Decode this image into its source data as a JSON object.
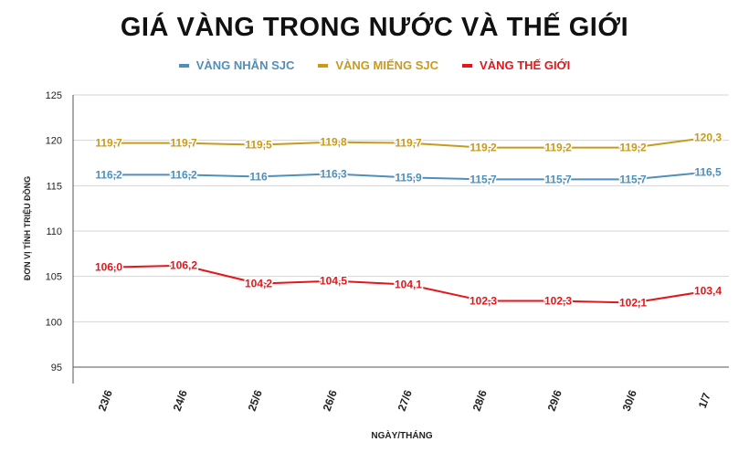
{
  "chart_data": {
    "type": "line",
    "title": "GIÁ VÀNG TRONG NƯỚC VÀ THẾ GIỚI",
    "xlabel": "NGÀY/THÁNG",
    "ylabel": "ĐƠN VỊ TÍNH TRIỆU ĐỒNG",
    "categories": [
      "23/6",
      "24/6",
      "25/6",
      "26/6",
      "27/6",
      "28/6",
      "29/6",
      "30/6",
      "1/7"
    ],
    "ylim": [
      95,
      125
    ],
    "yticks": [
      "95",
      "100",
      "105",
      "110",
      "115",
      "120",
      "125"
    ],
    "grid": true,
    "legend_position": "top-center",
    "series": [
      {
        "name": "VÀNG NHẪN SJC",
        "color": "#4f8fba",
        "values": [
          116.2,
          116.2,
          116.0,
          116.3,
          115.9,
          115.7,
          115.7,
          115.7,
          116.5
        ],
        "labels": [
          "116,2",
          "116,2",
          "116",
          "116,3",
          "115,9",
          "115,7",
          "115,7",
          "115,7",
          "116,5"
        ]
      },
      {
        "name": "VÀNG MIẾNG SJC",
        "color": "#c89a1e",
        "values": [
          119.7,
          119.7,
          119.5,
          119.8,
          119.7,
          119.2,
          119.2,
          119.2,
          120.3
        ],
        "labels": [
          "119,7",
          "119,7",
          "119,5",
          "119,8",
          "119,7",
          "119,2",
          "119,2",
          "119,2",
          "120,3"
        ]
      },
      {
        "name": "VÀNG THẾ GIỚI",
        "color": "#e3171b",
        "values": [
          106.0,
          106.2,
          104.2,
          104.5,
          104.1,
          102.3,
          102.3,
          102.1,
          103.4
        ],
        "labels": [
          "106,0",
          "106,2",
          "104,2",
          "104,5",
          "104,1",
          "102,3",
          "102,3",
          "102,1",
          "103,4"
        ]
      }
    ]
  }
}
